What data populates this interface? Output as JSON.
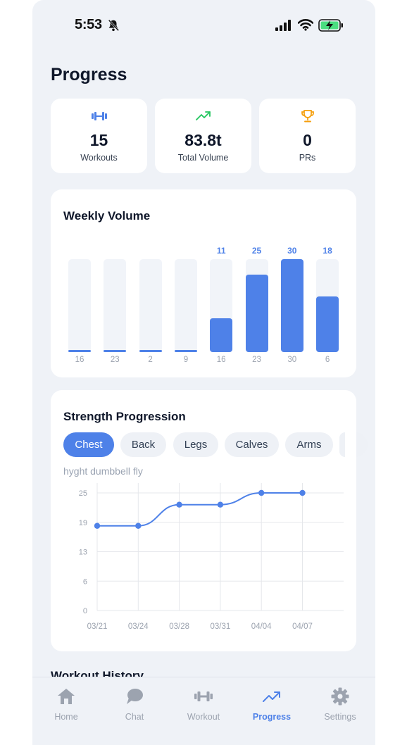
{
  "status": {
    "time": "5:53"
  },
  "title": "Progress",
  "stats": [
    {
      "icon": "dumbbell-icon",
      "value": "15",
      "label": "Workouts",
      "color": "#4e81e8"
    },
    {
      "icon": "trending-up-icon",
      "value": "83.8t",
      "label": "Total Volume",
      "color": "#22c55e"
    },
    {
      "icon": "trophy-icon",
      "value": "0",
      "label": "PRs",
      "color": "#f59e0b"
    }
  ],
  "weekly": {
    "title": "Weekly Volume",
    "chart_data": {
      "type": "bar",
      "categories": [
        "16",
        "23",
        "2",
        "9",
        "16",
        "23",
        "30",
        "6"
      ],
      "values": [
        0,
        0,
        0,
        0,
        11,
        25,
        30,
        18
      ],
      "value_labels": [
        "",
        "",
        "",
        "",
        "11",
        "25",
        "30",
        "18"
      ],
      "ylim": [
        0,
        30
      ],
      "color": "#4e81e8"
    }
  },
  "strength": {
    "title": "Strength Progression",
    "chips": [
      "Chest",
      "Back",
      "Legs",
      "Calves",
      "Arms",
      ""
    ],
    "active_chip": 0,
    "exercise": "hyght dumbbell fly",
    "chart_data": {
      "type": "line",
      "x": [
        "03/21",
        "03/24",
        "03/28",
        "03/31",
        "04/04",
        "04/07"
      ],
      "values": [
        18,
        18,
        22.5,
        22.5,
        25,
        25
      ],
      "yticks": [
        "25",
        "19",
        "13",
        "6",
        "0"
      ],
      "ylim": [
        0,
        25
      ],
      "grid": true,
      "color": "#4e81e8"
    }
  },
  "history_peek": "Workout History",
  "tabs": [
    {
      "label": "Home",
      "icon": "home-icon",
      "active": false
    },
    {
      "label": "Chat",
      "icon": "chat-icon",
      "active": false
    },
    {
      "label": "Workout",
      "icon": "dumbbell-icon",
      "active": false
    },
    {
      "label": "Progress",
      "icon": "trending-up-icon",
      "active": true
    },
    {
      "label": "Settings",
      "icon": "gear-icon",
      "active": false
    }
  ]
}
